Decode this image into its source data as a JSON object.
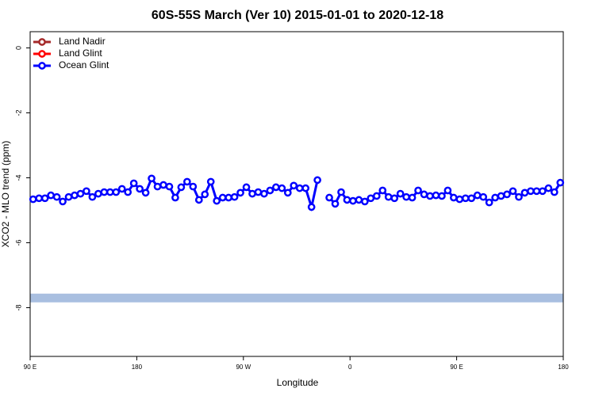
{
  "chart_data": {
    "type": "line",
    "title": "60S-55S March (Ver 10)   2015-01-01 to 2020-12-18",
    "xlabel": "Longitude",
    "ylabel": "XCO2 - MLO trend (ppm)",
    "xlim": [
      90,
      540
    ],
    "ylim": [
      -9.5,
      0.5
    ],
    "xticks": [
      {
        "value": 90,
        "label": "90 E"
      },
      180,
      {
        "value": 270,
        "label": "90 W"
      },
      {
        "value": 360,
        "label": "0"
      },
      {
        "value": 450,
        "label": "90 E"
      },
      {
        "value": 540,
        "label": "180"
      }
    ],
    "yticks": [
      0,
      -2,
      -4,
      -6,
      -8
    ],
    "band": {
      "value": -7.7,
      "color": "#a9bfe0"
    },
    "legend": "top-left",
    "x": [
      92.5,
      97.5,
      102.5,
      107.5,
      112.5,
      117.5,
      122.5,
      127.5,
      132.5,
      137.5,
      142.5,
      147.5,
      152.5,
      157.5,
      162.5,
      167.5,
      172.5,
      177.5,
      182.5,
      187.5,
      192.5,
      197.5,
      202.5,
      207.5,
      212.5,
      217.5,
      222.5,
      227.5,
      232.5,
      237.5,
      242.5,
      247.5,
      252.5,
      257.5,
      262.5,
      267.5,
      272.5,
      277.5,
      282.5,
      287.5,
      292.5,
      297.5,
      302.5,
      307.5,
      312.5,
      317.5,
      322.5,
      327.5,
      332.5,
      337.5,
      342.5,
      347.5,
      352.5,
      357.5,
      362.5,
      367.5,
      372.5,
      377.5,
      382.5,
      387.5,
      392.5,
      397.5,
      402.5,
      407.5,
      412.5,
      417.5,
      422.5,
      427.5,
      432.5,
      437.5,
      442.5,
      447.5,
      452.5,
      457.5,
      462.5,
      467.5,
      472.5,
      477.5,
      482.5,
      487.5,
      492.5,
      497.5,
      502.5,
      507.5,
      512.5,
      517.5,
      522.5,
      527.5,
      532.5,
      537.5
    ],
    "series": [
      {
        "name": "Land Nadir",
        "color": "#a52a2a"
      },
      {
        "name": "Land Glint",
        "color": "#ff0000"
      },
      {
        "name": "Ocean Glint",
        "color": "#0000ff",
        "values": [
          -4.66,
          -4.63,
          -4.63,
          -4.54,
          -4.59,
          -4.73,
          -4.59,
          -4.54,
          -4.49,
          -4.41,
          -4.59,
          -4.49,
          -4.44,
          -4.44,
          -4.44,
          -4.34,
          -4.44,
          -4.17,
          -4.34,
          -4.46,
          -4.02,
          -4.27,
          -4.22,
          -4.27,
          -4.61,
          -4.29,
          -4.12,
          -4.27,
          -4.68,
          -4.51,
          -4.12,
          -4.71,
          -4.61,
          -4.61,
          -4.59,
          -4.46,
          -4.29,
          -4.49,
          -4.44,
          -4.49,
          -4.39,
          -4.29,
          -4.32,
          -4.46,
          -4.24,
          -4.32,
          -4.32,
          -4.9,
          -4.07,
          null,
          -4.61,
          -4.8,
          -4.44,
          -4.68,
          -4.71,
          -4.68,
          -4.73,
          -4.63,
          -4.56,
          -4.39,
          -4.59,
          -4.63,
          -4.49,
          -4.59,
          -4.61,
          -4.39,
          -4.51,
          -4.56,
          -4.54,
          -4.56,
          -4.39,
          -4.61,
          -4.66,
          -4.63,
          -4.63,
          -4.54,
          -4.59,
          -4.76,
          -4.61,
          -4.56,
          -4.51,
          -4.41,
          -4.59,
          -4.46,
          -4.41,
          -4.41,
          -4.41,
          -4.32,
          -4.44,
          -4.15
        ]
      }
    ]
  }
}
